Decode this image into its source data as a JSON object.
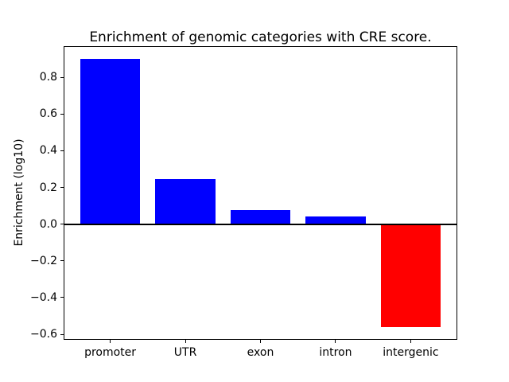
{
  "figure": {
    "background_color": "#ffffff",
    "spine_color": "#000000",
    "text_color": "#000000"
  },
  "chart_data": {
    "type": "bar",
    "title": "Enrichment of genomic categories with CRE score.",
    "xlabel": "",
    "ylabel": "Enrichment (log10)",
    "categories": [
      "promoter",
      "UTR",
      "exon",
      "intron",
      "intergenic"
    ],
    "values": [
      0.9,
      0.245,
      0.075,
      0.04,
      -0.56
    ],
    "bar_colors": [
      "#0000ff",
      "#0000ff",
      "#0000ff",
      "#0000ff",
      "#ff0000"
    ],
    "positive_color": "#0000ff",
    "negative_color": "#ff0000",
    "bar_width": 0.8,
    "ylim": [
      -0.63,
      0.97
    ],
    "xlim": [
      -0.62,
      4.62
    ],
    "yticks": [
      0.8,
      0.6,
      0.4,
      0.2,
      0.0,
      -0.2,
      -0.4,
      -0.6
    ],
    "ytick_labels": [
      "0.8",
      "0.6",
      "0.4",
      "0.2",
      "0.0",
      "−0.2",
      "−0.4",
      "−0.6"
    ],
    "axhline": 0,
    "grid": false,
    "legend": null
  }
}
